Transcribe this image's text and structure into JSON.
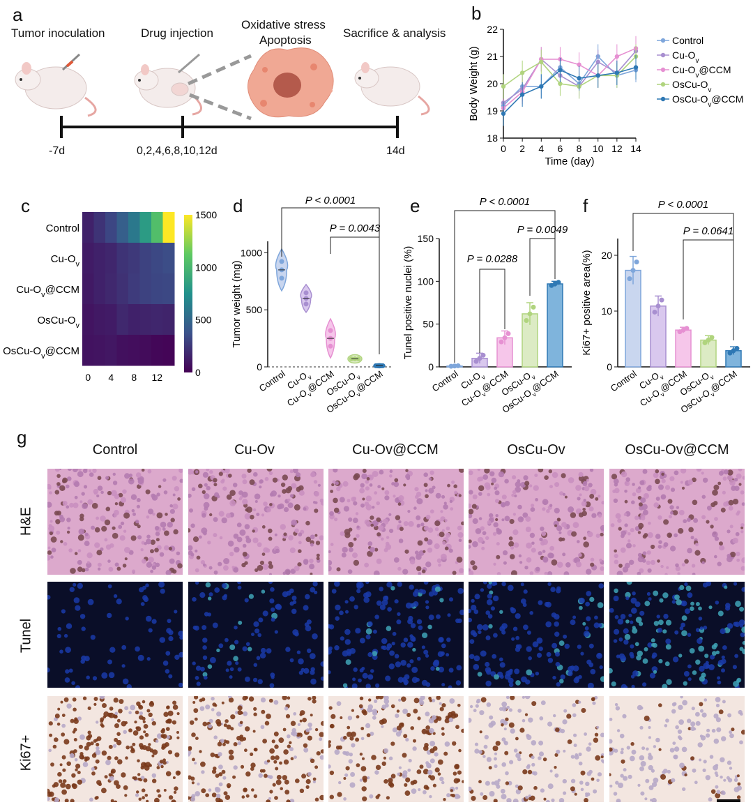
{
  "panels": {
    "a": "a",
    "b": "b",
    "c": "c",
    "d": "d",
    "e": "e",
    "f": "f",
    "g": "g"
  },
  "panel_a": {
    "step1": "Tumor inoculation",
    "step2": "Drug injection",
    "step3_line1": "Oxidative stress",
    "step3_line2": "Apoptosis",
    "step4": "Sacrifice & analysis",
    "t1": "-7d",
    "t2": "0,2,4,6,8,10,12d",
    "t3": "14d"
  },
  "groups": [
    "Control",
    "Cu-Ov",
    "Cu-Ov@CCM",
    "OsCu-Ov",
    "OsCu-Ov@CCM"
  ],
  "colors": {
    "control": "#7ea6db",
    "cuov": "#a88fd0",
    "cuovccm": "#e690d2",
    "oscuov": "#b0d47e",
    "oscuovccm": "#2e78b4",
    "bar_control": "#c9d6ef",
    "bar_cuov": "#d9c8ee",
    "bar_cuovccm": "#f6c6ea",
    "bar_oscuov": "#dcebc4",
    "bar_oscuovccm": "#7fb4dc"
  },
  "chart_data": [
    {
      "panel": "b",
      "type": "line",
      "xlabel": "Time (day)",
      "ylabel": "Body Weight (g)",
      "x": [
        0,
        2,
        4,
        6,
        8,
        10,
        12,
        14
      ],
      "xlim": [
        0,
        14
      ],
      "ylim": [
        18,
        22
      ],
      "yticks": [
        18,
        19,
        20,
        21,
        22
      ],
      "legend": "right",
      "series": [
        {
          "name": "Control",
          "values": [
            19.2,
            19.9,
            19.9,
            20.6,
            20.0,
            21.0,
            20.3,
            20.5
          ]
        },
        {
          "name": "Cu-Ov",
          "values": [
            19.3,
            19.8,
            20.9,
            20.3,
            19.9,
            20.8,
            20.4,
            21.2
          ]
        },
        {
          "name": "Cu-Ov@CCM",
          "values": [
            19.1,
            19.7,
            20.9,
            20.9,
            20.7,
            20.3,
            21.0,
            21.3
          ]
        },
        {
          "name": "OsCu-Ov",
          "values": [
            19.9,
            20.4,
            20.8,
            20.0,
            19.9,
            20.3,
            20.3,
            21.0
          ]
        },
        {
          "name": "OsCu-Ov@CCM",
          "values": [
            18.9,
            19.6,
            19.9,
            20.5,
            20.2,
            20.3,
            20.4,
            20.6
          ]
        }
      ]
    },
    {
      "panel": "c",
      "type": "heatmap",
      "rows": [
        "Control",
        "Cu-Ov",
        "Cu-Ov@CCM",
        "OsCu-Ov",
        "OsCu-Ov@CCM"
      ],
      "x": [
        0,
        2,
        4,
        6,
        8,
        10,
        12,
        14
      ],
      "xticks": [
        0,
        4,
        8,
        12
      ],
      "colorbar_ticks": [
        0,
        500,
        1000,
        1500
      ],
      "values": [
        [
          150,
          230,
          320,
          450,
          600,
          820,
          1050,
          1500
        ],
        [
          120,
          150,
          170,
          230,
          260,
          300,
          330,
          350
        ],
        [
          110,
          150,
          180,
          220,
          270,
          300,
          320,
          330
        ],
        [
          90,
          110,
          120,
          180,
          150,
          160,
          170,
          160
        ],
        [
          80,
          90,
          100,
          70,
          60,
          50,
          30,
          20
        ]
      ]
    },
    {
      "panel": "d",
      "type": "violin",
      "ylabel": "Tumor weight (mg)",
      "categories": [
        "Control",
        "Cu-Ov",
        "Cu-Ov@CCM",
        "OsCu-Ov",
        "OsCu-Ov@CCM"
      ],
      "values": [
        850,
        600,
        250,
        70,
        10
      ],
      "ylim": [
        0,
        1100
      ],
      "yticks": [
        0,
        500,
        1000
      ],
      "annotations": [
        "P < 0.0001",
        "P = 0.0043"
      ]
    },
    {
      "panel": "e",
      "type": "bar",
      "ylabel": "Tunel positive nuclei (%)",
      "categories": [
        "Control",
        "Cu-Ov",
        "Cu-Ov@CCM",
        "OsCu-Ov",
        "OsCu-Ov@CCM"
      ],
      "values": [
        1,
        10,
        34,
        62,
        97
      ],
      "errors": [
        0.5,
        6,
        8,
        13,
        3
      ],
      "ylim": [
        0,
        150
      ],
      "yticks": [
        0,
        50,
        100,
        150
      ],
      "annotations": [
        "P < 0.0001",
        "P = 0.0049",
        "P = 0.0288"
      ]
    },
    {
      "panel": "f",
      "type": "bar",
      "ylabel": "Ki67+ positive area(%)",
      "categories": [
        "Control",
        "Cu-Ov",
        "Cu-Ov@CCM",
        "OsCu-Ov",
        "OsCu-Ov@CCM"
      ],
      "values": [
        17.3,
        10.9,
        6.6,
        4.8,
        2.9
      ],
      "errors": [
        2.5,
        1.8,
        0.5,
        0.8,
        0.7
      ],
      "ylim": [
        0,
        23
      ],
      "yticks": [
        0,
        10,
        20
      ],
      "annotations": [
        "P < 0.0001",
        "P = 0.0641"
      ]
    }
  ],
  "panel_g": {
    "columns": [
      "Control",
      "Cu-Ov",
      "Cu-Ov@CCM",
      "OsCu-Ov",
      "OsCu-Ov@CCM"
    ],
    "rows": [
      "H&E",
      "Tunel",
      "Ki67+"
    ]
  }
}
